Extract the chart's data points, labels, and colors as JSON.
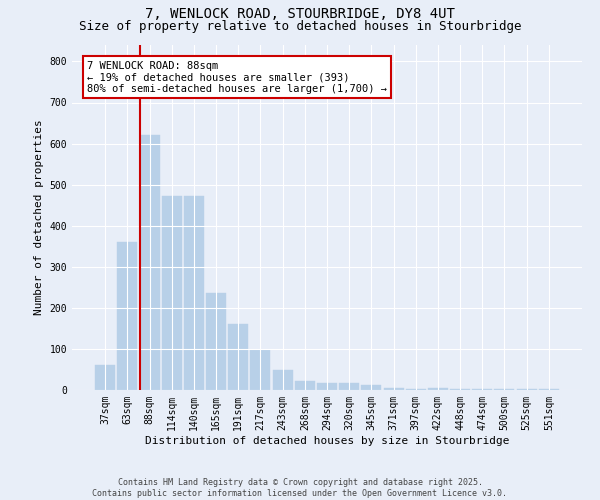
{
  "title_line1": "7, WENLOCK ROAD, STOURBRIDGE, DY8 4UT",
  "title_line2": "Size of property relative to detached houses in Stourbridge",
  "xlabel": "Distribution of detached houses by size in Stourbridge",
  "ylabel": "Number of detached properties",
  "categories": [
    "37sqm",
    "63sqm",
    "88sqm",
    "114sqm",
    "140sqm",
    "165sqm",
    "191sqm",
    "217sqm",
    "243sqm",
    "268sqm",
    "294sqm",
    "320sqm",
    "345sqm",
    "371sqm",
    "397sqm",
    "422sqm",
    "448sqm",
    "474sqm",
    "500sqm",
    "525sqm",
    "551sqm"
  ],
  "values": [
    62,
    360,
    620,
    473,
    473,
    235,
    160,
    97,
    48,
    22,
    18,
    18,
    13,
    5,
    3,
    5,
    2,
    2,
    2,
    2,
    2
  ],
  "bar_color": "#b8d0e8",
  "highlight_index": 2,
  "red_line_color": "#cc0000",
  "ylim": [
    0,
    840
  ],
  "yticks": [
    0,
    100,
    200,
    300,
    400,
    500,
    600,
    700,
    800
  ],
  "annotation_line1": "7 WENLOCK ROAD: 88sqm",
  "annotation_line2": "← 19% of detached houses are smaller (393)",
  "annotation_line3": "80% of semi-detached houses are larger (1,700) →",
  "annotation_box_facecolor": "#ffffff",
  "annotation_box_edgecolor": "#cc0000",
  "footer_line1": "Contains HM Land Registry data © Crown copyright and database right 2025.",
  "footer_line2": "Contains public sector information licensed under the Open Government Licence v3.0.",
  "bg_color": "#e8eef8",
  "grid_color": "#ffffff",
  "title_fontsize": 10,
  "subtitle_fontsize": 9,
  "tick_fontsize": 7,
  "ylabel_fontsize": 8,
  "xlabel_fontsize": 8,
  "annotation_fontsize": 7.5,
  "footer_fontsize": 6
}
